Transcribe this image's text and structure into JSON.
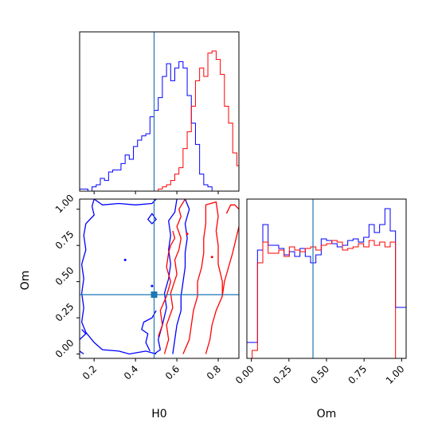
{
  "chart_data": [
    {
      "type": "histogram",
      "panel": "H0 marginal",
      "xlim": [
        0.13,
        0.9
      ],
      "truth": 0.49,
      "series": [
        {
          "color": "#0000ff",
          "bins": [
            0.13,
            0.95
          ],
          "counts": [
            1,
            1,
            0,
            2,
            3,
            6,
            5,
            9,
            10,
            10,
            13,
            17,
            15,
            21,
            24,
            26,
            27,
            35,
            38,
            44,
            54,
            60,
            52,
            58,
            61,
            58,
            45,
            32,
            22,
            8,
            3,
            2,
            0,
            0,
            0,
            0,
            0,
            0,
            0,
            0,
            0
          ]
        },
        {
          "color": "#ff0000",
          "bins": [
            0.13,
            0.95
          ],
          "counts": [
            0,
            0,
            0,
            0,
            0,
            0,
            0,
            0,
            0,
            0,
            0,
            0,
            0,
            0,
            0,
            0,
            0,
            0,
            0,
            1,
            2,
            3,
            5,
            8,
            11,
            20,
            28,
            40,
            52,
            58,
            54,
            65,
            66,
            62,
            55,
            40,
            32,
            18,
            12,
            5,
            3
          ]
        }
      ],
      "hist_max": 75
    },
    {
      "type": "contour",
      "panel": "H0-Om joint",
      "xlabel": "H0",
      "ylabel": "Om",
      "xlim": [
        0.13,
        0.9
      ],
      "ylim": [
        -0.03,
        1.07
      ],
      "xticks": [
        "0.2",
        "0.4",
        "0.6",
        "0.8"
      ],
      "yticks": [
        "0.00",
        "0.25",
        "0.50",
        "0.75",
        "1.00"
      ],
      "truth": [
        0.49,
        0.41
      ],
      "series": [
        {
          "color": "#0000ff",
          "name_shown": false
        },
        {
          "color": "#ff0000",
          "name_shown": false
        }
      ]
    },
    {
      "type": "histogram",
      "panel": "Om marginal",
      "xlabel": "Om",
      "xlim": [
        -0.03,
        1.03
      ],
      "xticks": [
        "0.00",
        "0.25",
        "0.50",
        "0.75",
        "1.00"
      ],
      "truth": 0.41,
      "series": [
        {
          "color": "#0000ff",
          "bins": [
            -0.03,
            1.03
          ],
          "counts": [
            10,
            10,
            68,
            84,
            71,
            71,
            69,
            65,
            67,
            64,
            69,
            64,
            60,
            65,
            75,
            74,
            72,
            70,
            71,
            74,
            75,
            73,
            76,
            84,
            79,
            84,
            94,
            80,
            32,
            32
          ]
        },
        {
          "color": "#ff0000",
          "bins": [
            -0.03,
            1.03
          ],
          "counts": [
            0,
            5,
            60,
            73,
            66,
            66,
            68,
            64,
            70,
            68,
            67,
            69,
            70,
            68,
            71,
            72,
            74,
            73,
            68,
            69,
            70,
            72,
            70,
            74,
            71,
            73,
            70,
            73,
            0,
            0
          ]
        }
      ],
      "hist_max": 100
    }
  ],
  "colors": {
    "blue": "#0000ff",
    "red": "#ff0000",
    "truth": "#1f77b4"
  }
}
